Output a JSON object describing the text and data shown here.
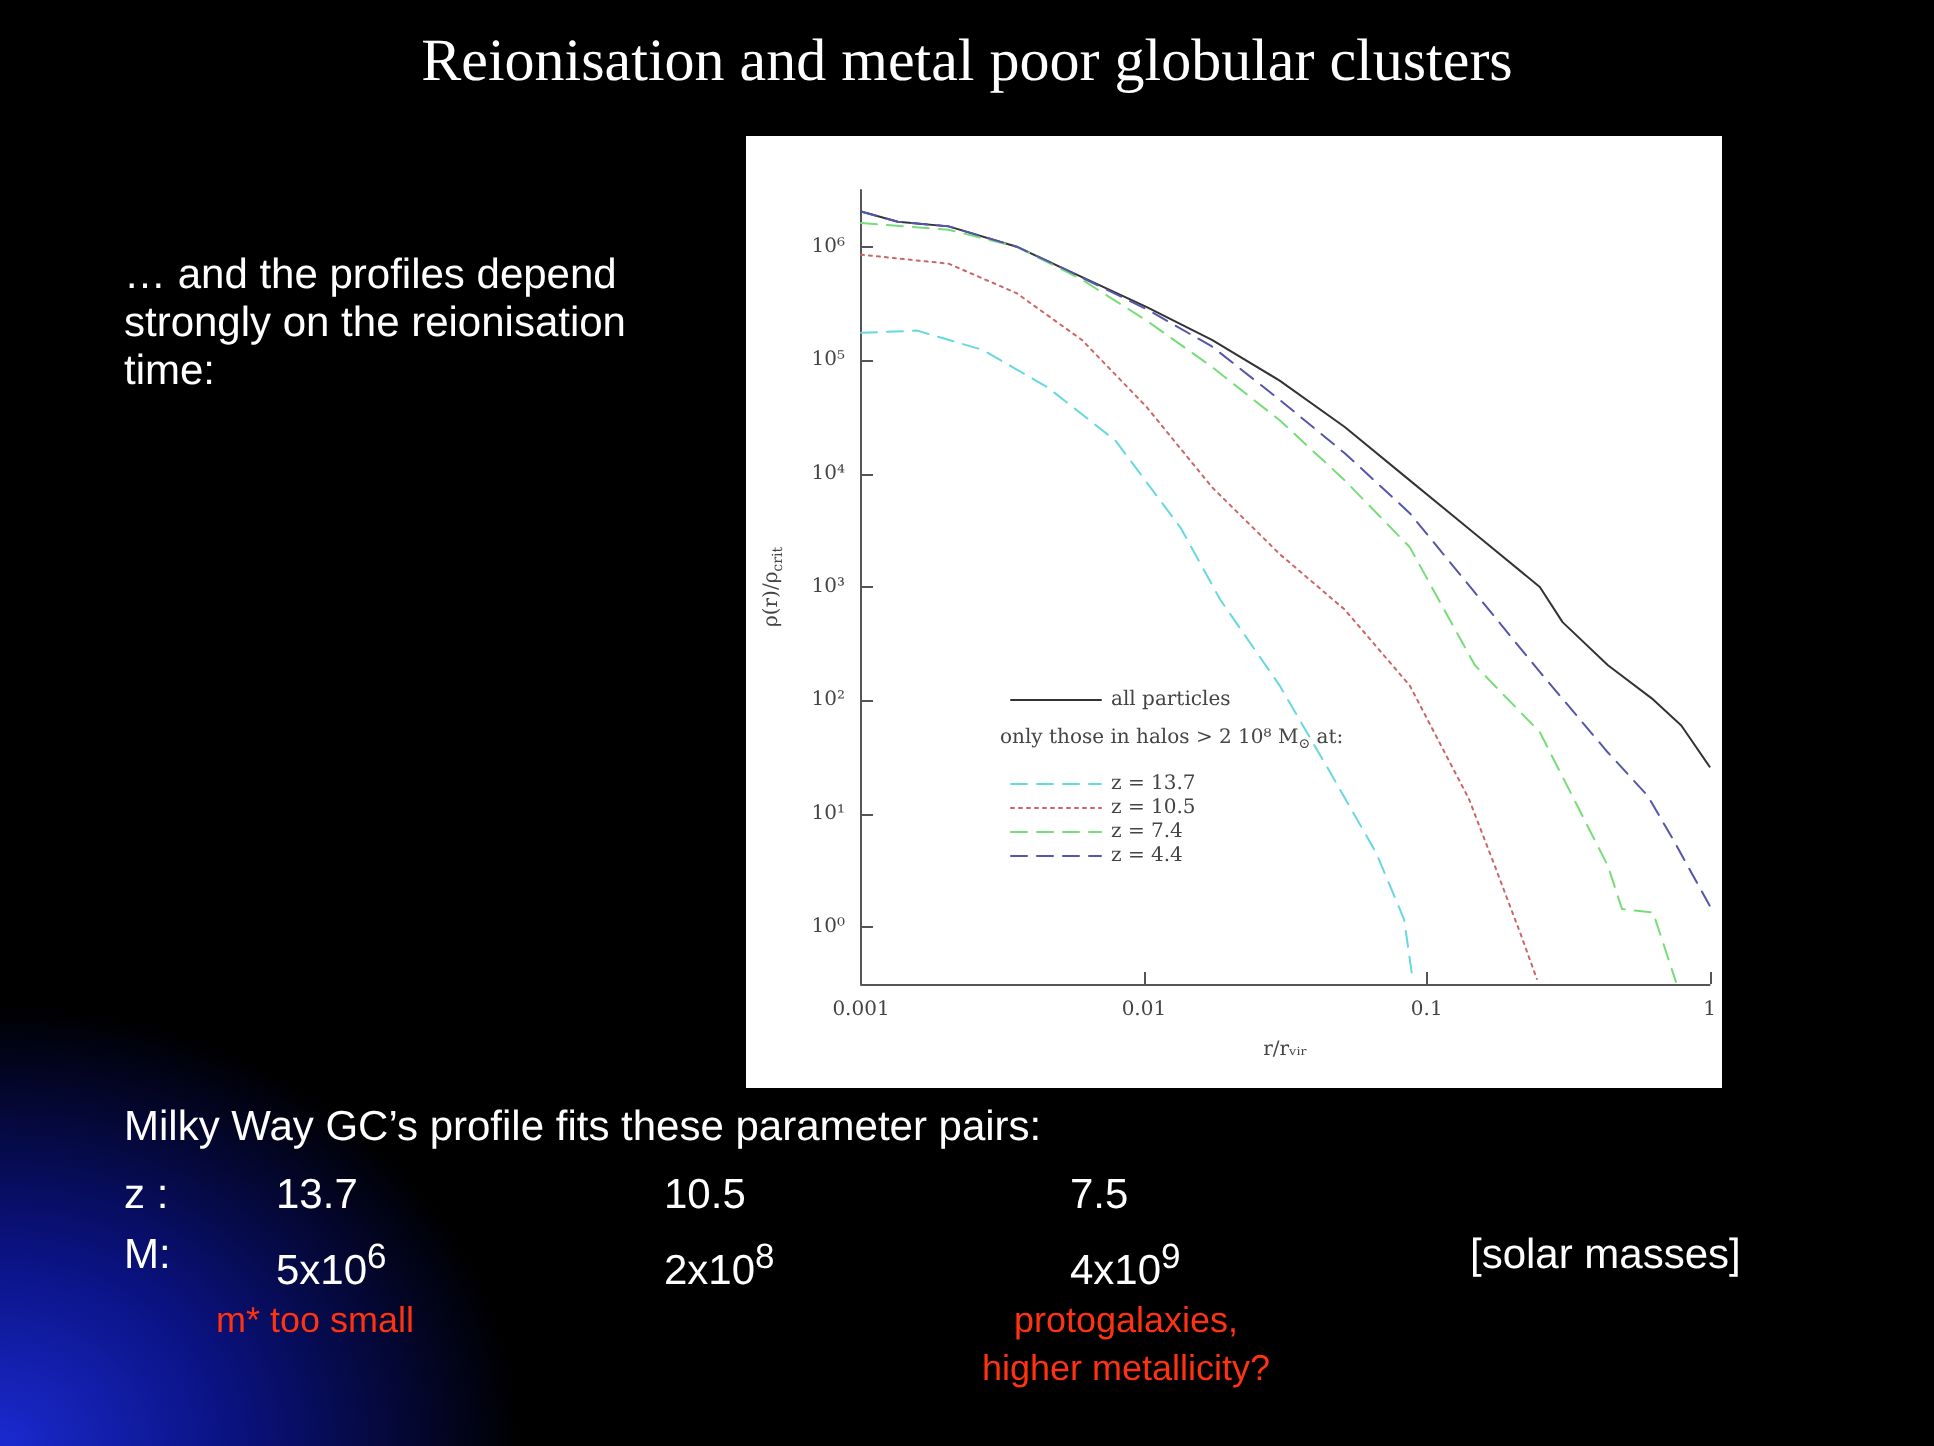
{
  "chart_data": {
    "type": "line",
    "title": "Reionisation and metal poor globular clusters",
    "xlabel": "r/rᵥᵢᵣ",
    "ylabel": "ρ(r)/ρ$_{crit}$",
    "legend_title": "only those in halos > 2 10⁸ M$_{⊙}$ at:",
    "log": "xy",
    "grid": false,
    "legend": "center",
    "marker": "none",
    "xlim": [
      0.001,
      1
    ],
    "xticks": [
      0.001,
      0.01,
      0.1,
      1
    ],
    "ylim": [
      0.316,
      3160000
    ],
    "yticks": [
      {
        "value": 1,
        "label": "10⁰"
      },
      {
        "value": 10,
        "label": "10¹"
      },
      {
        "value": 100,
        "label": "10²"
      },
      {
        "value": 1000,
        "label": "10³"
      },
      {
        "value": 10000,
        "label": "10⁴"
      },
      {
        "value": 100000,
        "label": "10⁵"
      },
      {
        "value": 1000000,
        "label": "10⁶"
      }
    ],
    "series": [
      {
        "name": "all particles",
        "color": "#333333",
        "line_style": "solid",
        "x": [
          0.001,
          0.00135,
          0.00204,
          0.00355,
          0.00537,
          0.0102,
          0.0174,
          0.0302,
          0.0513,
          0.0871,
          0.148,
          0.251,
          0.302,
          0.437,
          0.631,
          0.794,
          1
        ],
        "values": [
          2040000,
          1660000,
          1510000,
          1000000,
          617000,
          295000,
          151000,
          66000,
          25700,
          8700,
          2950,
          1000,
          490,
          204,
          102,
          60,
          26
        ]
      },
      {
        "name": "z = 13.7",
        "color": "#66d8e0",
        "line_style": "dashed",
        "x": [
          0.001,
          0.00158,
          0.00269,
          0.00457,
          0.00794,
          0.0135,
          0.0186,
          0.0302,
          0.0457,
          0.0661,
          0.0832,
          0.0891
        ],
        "values": [
          174000,
          182000,
          123000,
          57500,
          19500,
          3310,
          776,
          135,
          22.9,
          4.57,
          1.17,
          0.35
        ]
      },
      {
        "name": "z = 10.5",
        "color": "#cc6666",
        "line_style": "dotted",
        "x": [
          0.001,
          0.00204,
          0.00355,
          0.00603,
          0.0102,
          0.0174,
          0.0302,
          0.0513,
          0.0871,
          0.141,
          0.174,
          0.214,
          0.245
        ],
        "values": [
          851000,
          708000,
          389000,
          151000,
          38900,
          7590,
          1950,
          631,
          135,
          13.5,
          3.47,
          0.89,
          0.35
        ]
      },
      {
        "name": "z = 7.4",
        "color": "#77dd77",
        "line_style": "dashed",
        "x": [
          0.001,
          0.00204,
          0.00355,
          0.00603,
          0.0102,
          0.0174,
          0.0302,
          0.0513,
          0.0871,
          0.148,
          0.251,
          0.437,
          0.49,
          0.631,
          0.741,
          0.76
        ],
        "values": [
          1620000,
          1410000,
          1000000,
          513000,
          224000,
          87100,
          29500,
          8700,
          2240,
          204,
          52.5,
          3.47,
          1.45,
          1.35,
          0.4,
          0.33
        ]
      },
      {
        "name": "z = 4.4",
        "color": "#5555aa",
        "line_style": "dashed",
        "x": [
          0.001,
          0.00135,
          0.00204,
          0.00355,
          0.00537,
          0.0102,
          0.0174,
          0.0302,
          0.0513,
          0.0871,
          0.148,
          0.251,
          0.437,
          0.603,
          0.741,
          1
        ],
        "values": [
          2040000,
          1660000,
          1510000,
          1000000,
          617000,
          282000,
          132000,
          44700,
          15100,
          4470,
          891,
          178,
          34.7,
          14.5,
          6.0,
          1.55
        ]
      }
    ],
    "annotations": [
      "… and the profiles depend strongly on the reionisation time:",
      "Milky Way GC’s profile fits these parameter pairs:",
      "z :",
      "13.7",
      "10.5",
      "7.5",
      "M:",
      "5x10$^{6}$",
      "2x10$^{8}$",
      "4x10$^{9}$",
      "[solar masses]",
      "m* too small",
      "protogalaxies,\nhigher metallicity?"
    ]
  }
}
